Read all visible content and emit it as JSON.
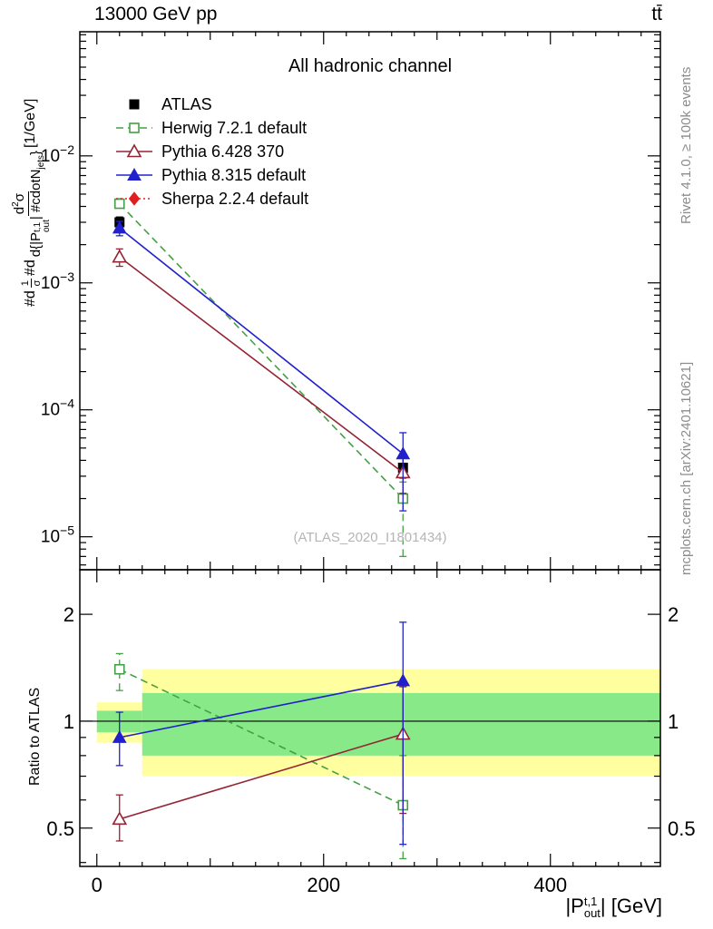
{
  "header": {
    "left": "13000 GeV pp",
    "right": "tt̄"
  },
  "captions": {
    "rivet": "Rivet 4.1.0, ≥ 100k events",
    "mcplots": "mcplots.cern.ch [arXiv:2401.10621]"
  },
  "main": {
    "title": "All hadronic channel",
    "watermark": "(ATLAS_2020_I1801434)"
  },
  "ylabel_main": {
    "prefix": "#d",
    "frac1_num": "1",
    "frac1_den": "σ",
    "mid": "#d",
    "num_a": "d",
    "num_sup": "2",
    "num_b": "σ",
    "den_a": "d{|P",
    "den_sup": "t,1",
    "den_sub": "out",
    "den_b": "| #cdotN",
    "den_sub2": "jets",
    "den_c": "}",
    "suffix": "[1/GeV]"
  },
  "ratio": {
    "ylabel": "Ratio to ATLAS"
  },
  "xlabel": {
    "a": "|P",
    "sup": "t,1",
    "sub": "out",
    "b": "| [GeV]"
  },
  "chart_data": {
    "type": "line",
    "title": "All hadronic channel",
    "x_axis": {
      "label": "|P_out^{t,1}| [GeV]",
      "min": -15,
      "max": 497,
      "major_labels": [
        0,
        200,
        400
      ],
      "mid_step": 100,
      "minor_step": 20
    },
    "main_axis": {
      "scale": "log",
      "label": "1/σ d²σ/d{|P_out^{t,1}| ⋅ N_jets} [1/GeV]",
      "min": 5.5e-06,
      "max": 0.095,
      "major_exponents": [
        -2,
        -3,
        -4,
        -5
      ]
    },
    "ratio_axis": {
      "scale": "log",
      "label": "Ratio to ATLAS",
      "min": 0.39,
      "max": 2.67,
      "majors": [
        0.5,
        1,
        2
      ],
      "minors": [
        0.4,
        0.6,
        0.7,
        0.8,
        0.9
      ],
      "unity_line": 1
    },
    "series": [
      {
        "name": "ATLAS",
        "color": "#000000",
        "line": "none",
        "marker": "square-filled",
        "x": [
          20,
          270
        ],
        "y": [
          0.003,
          3.5e-05
        ],
        "y_lo": [
          0.00275,
          2.9e-05
        ],
        "y_hi": [
          0.0033,
          4.2e-05
        ]
      },
      {
        "name": "Herwig 7.2.1 default",
        "color": "#44a044",
        "line": "dashed",
        "marker": "square-open",
        "x": [
          20,
          270
        ],
        "y": [
          0.0042,
          2e-05
        ],
        "y_lo": [
          0.0039,
          7e-06
        ],
        "y_hi": [
          0.0046,
          2.7e-05
        ],
        "ratio": [
          1.4,
          0.58
        ],
        "ratio_lo": [
          1.22,
          0.41
        ],
        "ratio_hi": [
          1.55,
          0.8
        ]
      },
      {
        "name": "Pythia 6.428 370",
        "color": "#942434",
        "line": "solid",
        "marker": "triangle-open",
        "x": [
          20,
          270
        ],
        "y": [
          0.0016,
          3.2e-05
        ],
        "y_lo": [
          0.00135,
          2.2e-05
        ],
        "y_hi": [
          0.00185,
          4.3e-05
        ],
        "ratio": [
          0.53,
          0.92
        ],
        "ratio_lo": [
          0.46,
          0.55
        ],
        "ratio_hi": [
          0.62,
          1.25
        ]
      },
      {
        "name": "Pythia 8.315 default",
        "color": "#2020cc",
        "line": "solid",
        "marker": "triangle-filled",
        "x": [
          20,
          270
        ],
        "y": [
          0.0027,
          4.5e-05
        ],
        "y_lo": [
          0.00235,
          1.6e-05
        ],
        "y_hi": [
          0.00305,
          6.6e-05
        ],
        "ratio": [
          0.9,
          1.3
        ],
        "ratio_lo": [
          0.75,
          0.45
        ],
        "ratio_hi": [
          1.06,
          1.9
        ]
      },
      {
        "name": "Sherpa 2.2.4 default",
        "color": "#e02020",
        "line": "dotted",
        "marker": "diamond-filled",
        "x": [],
        "y": []
      }
    ],
    "bands": [
      {
        "x1": 0,
        "x2": 40,
        "lo": 0.87,
        "hi": 1.13,
        "color": "#ffffa0",
        "kind": "total-uncertainty"
      },
      {
        "x1": 40,
        "x2": 497,
        "lo": 0.7,
        "hi": 1.4,
        "color": "#ffffa0",
        "kind": "total-uncertainty"
      },
      {
        "x1": 0,
        "x2": 40,
        "lo": 0.93,
        "hi": 1.07,
        "color": "#87e987",
        "kind": "stat-uncertainty"
      },
      {
        "x1": 40,
        "x2": 497,
        "lo": 0.8,
        "hi": 1.2,
        "color": "#87e987",
        "kind": "stat-uncertainty"
      }
    ]
  }
}
